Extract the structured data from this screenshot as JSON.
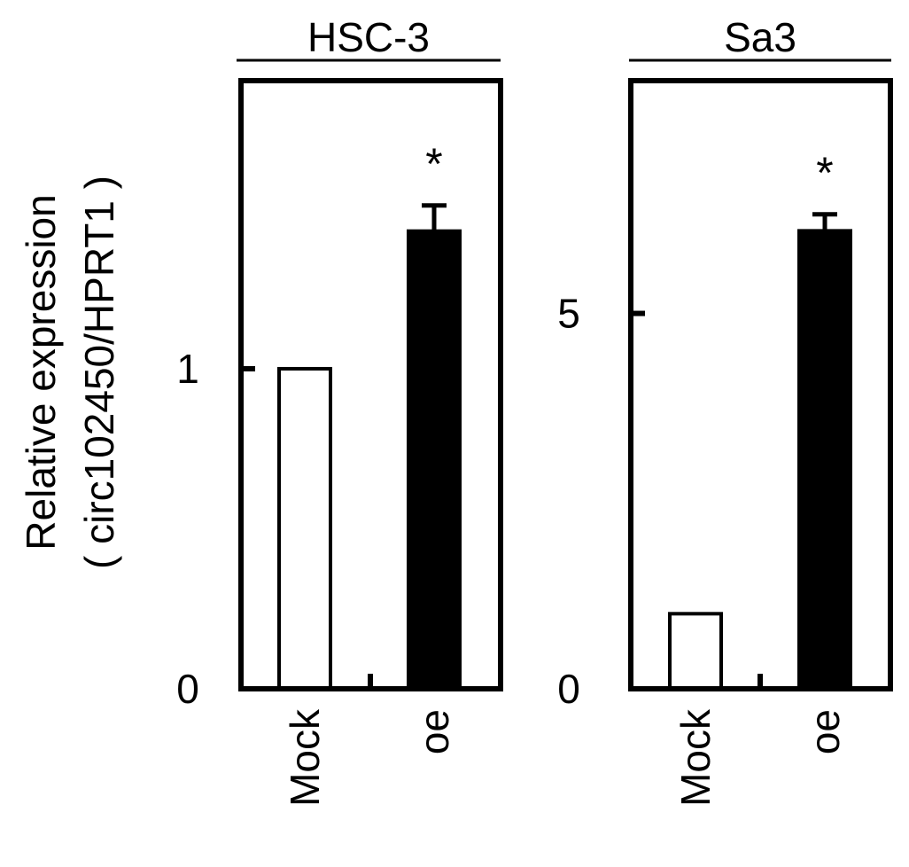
{
  "chart_data": {
    "ylabel_line1": "Relative expression",
    "ylabel_line2": "( circ102450/HPRT1 )",
    "panels": [
      {
        "type": "bar",
        "title": "HSC-3",
        "categories": [
          "Mock",
          "oe"
        ],
        "values": [
          1.0,
          1.43
        ],
        "errors": [
          0.0,
          0.08
        ],
        "bar_colors": [
          "#ffffff",
          "#000000"
        ],
        "significance": [
          "",
          "*"
        ],
        "yticks": [
          0,
          1
        ],
        "ylim": [
          0,
          1.9
        ]
      },
      {
        "type": "bar",
        "title": "Sa3",
        "categories": [
          "Mock",
          "oe"
        ],
        "values": [
          1.0,
          6.1
        ],
        "errors": [
          0.0,
          0.22
        ],
        "bar_colors": [
          "#ffffff",
          "#000000"
        ],
        "significance": [
          "",
          "*"
        ],
        "yticks": [
          0,
          5
        ],
        "ylim": [
          0,
          8.1
        ]
      }
    ]
  }
}
